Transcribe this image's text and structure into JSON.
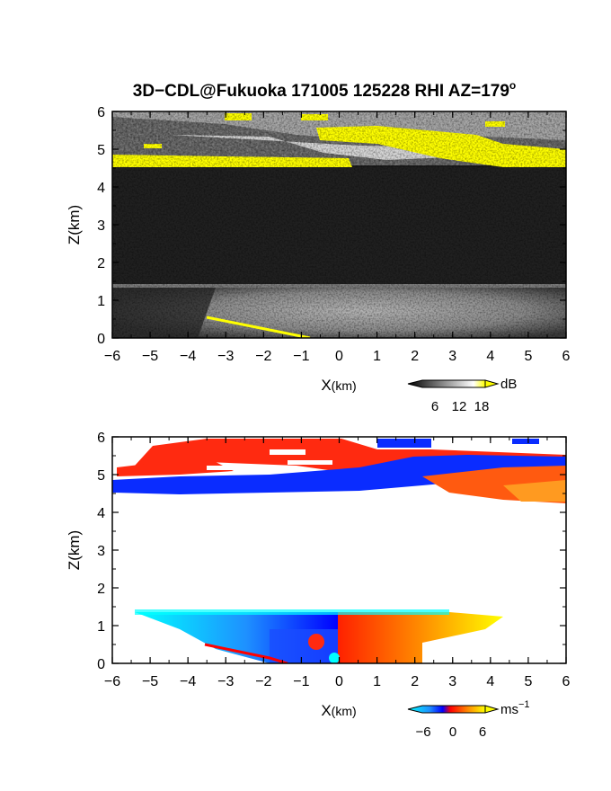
{
  "figure": {
    "title_main": "3D−CDL@Fukuoka 171005 125228 RHI AZ=179",
    "title_sup": "o"
  },
  "chart_data": [
    {
      "type": "heatmap",
      "name": "backscatter",
      "xlabel_main": "X",
      "xlabel_unit": "(km)",
      "ylabel": "Z(km)",
      "xlim": [
        -6,
        6
      ],
      "ylim": [
        0,
        6
      ],
      "x_ticks": [
        "−6",
        "−5",
        "−4",
        "−3",
        "−2",
        "−1",
        "0",
        "1",
        "2",
        "3",
        "4",
        "5",
        "6"
      ],
      "y_ticks": [
        "0",
        "1",
        "2",
        "3",
        "4",
        "5",
        "6"
      ],
      "colorbar": {
        "ticks": [
          "6",
          "12",
          "18"
        ],
        "unit": "dB",
        "range": [
          0,
          20
        ],
        "colors": [
          "#000000",
          "#ffffff",
          "#ffff00"
        ]
      }
    },
    {
      "type": "heatmap",
      "name": "doppler_velocity",
      "xlabel_main": "X",
      "xlabel_unit": "(km)",
      "ylabel": "Z(km)",
      "xlim": [
        -6,
        6
      ],
      "ylim": [
        0,
        6
      ],
      "x_ticks": [
        "−6",
        "−5",
        "−4",
        "−3",
        "−2",
        "−1",
        "0",
        "1",
        "2",
        "3",
        "4",
        "5",
        "6"
      ],
      "y_ticks": [
        "0",
        "1",
        "2",
        "3",
        "4",
        "5",
        "6"
      ],
      "colorbar": {
        "ticks": [
          "−6",
          "0",
          "6"
        ],
        "unit": "ms",
        "unit_sup": "−1",
        "range": [
          -8,
          8
        ],
        "colors": [
          "#00ffff",
          "#1e90ff",
          "#0000ff",
          "#ff0000",
          "#ff8c00",
          "#ffff00"
        ]
      }
    }
  ]
}
